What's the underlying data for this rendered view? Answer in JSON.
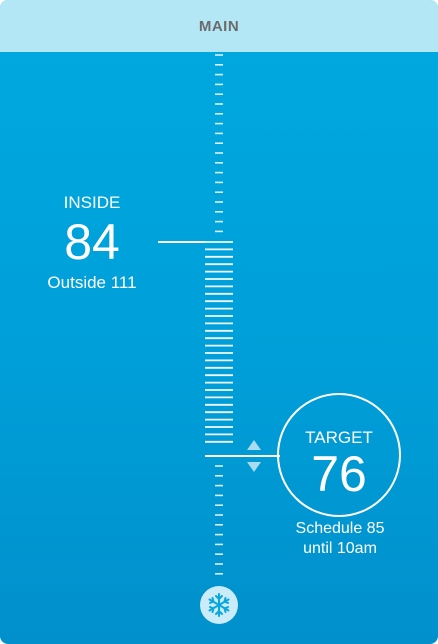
{
  "header": {
    "title": "MAIN"
  },
  "inside": {
    "label": "INSIDE",
    "value": "84",
    "outside_text": "Outside 111"
  },
  "target": {
    "label": "TARGET",
    "value": "76"
  },
  "schedule": {
    "line1": "Schedule 85",
    "line2": "until 10am"
  },
  "mode": {
    "icon": "snowflake-icon",
    "mode": "cool"
  },
  "colors": {
    "background": "#00a9e0",
    "topbar": "#b4e7f5",
    "accent": "#ffffff"
  }
}
